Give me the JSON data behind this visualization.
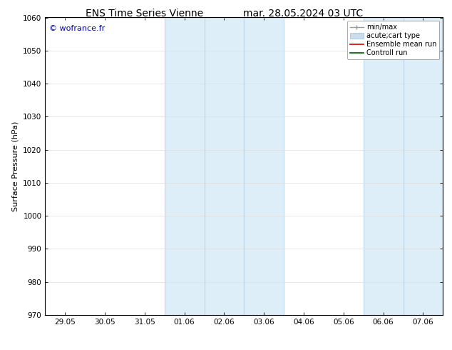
{
  "title_left": "ENS Time Series Vienne",
  "title_right": "mar. 28.05.2024 03 UTC",
  "ylabel": "Surface Pressure (hPa)",
  "ylim": [
    970,
    1060
  ],
  "yticks": [
    970,
    980,
    990,
    1000,
    1010,
    1020,
    1030,
    1040,
    1050,
    1060
  ],
  "xtick_labels": [
    "29.05",
    "30.05",
    "31.05",
    "01.06",
    "02.06",
    "03.06",
    "04.06",
    "05.06",
    "06.06",
    "07.06"
  ],
  "xtick_positions": [
    0,
    1,
    2,
    3,
    4,
    5,
    6,
    7,
    8,
    9
  ],
  "shaded_regions": [
    {
      "xstart": 3,
      "xend": 5,
      "color": "#ddeef8"
    },
    {
      "xstart": 8,
      "xend": 9,
      "color": "#ddeef8"
    }
  ],
  "shaded_lines": [
    3,
    4,
    5,
    8,
    9
  ],
  "watermark_text": "© wofrance.fr",
  "watermark_color": "#0000bb",
  "background_color": "#ffffff",
  "grid_color": "#dddddd",
  "spine_color": "#000000",
  "title_fontsize": 10,
  "tick_fontsize": 7.5,
  "ylabel_fontsize": 8,
  "legend_fontsize": 7,
  "watermark_fontsize": 8
}
